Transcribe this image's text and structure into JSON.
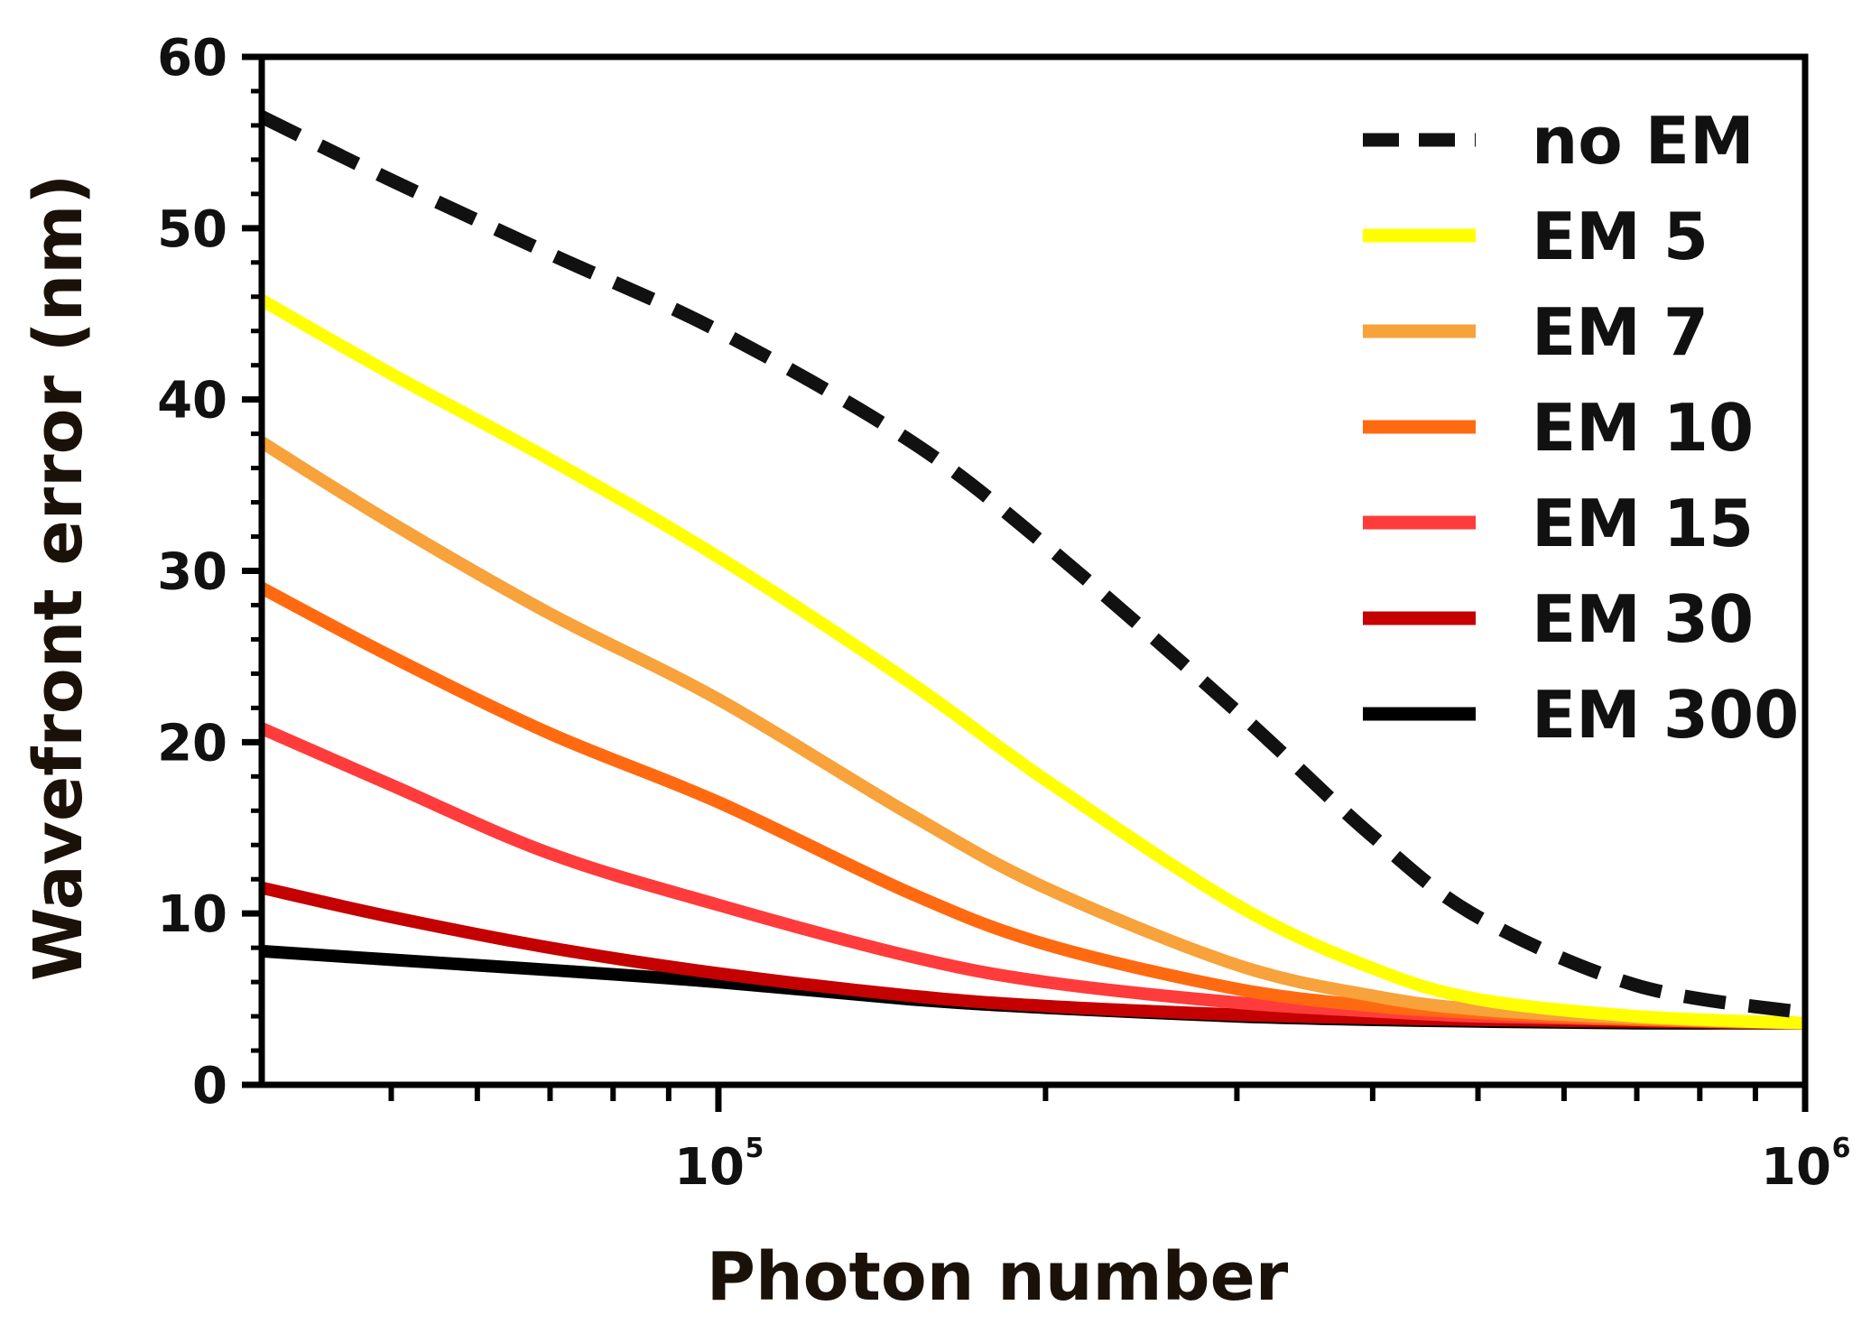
{
  "chart_data": {
    "type": "line",
    "title": "",
    "xlabel": "Photon number",
    "ylabel": "Wavefront error (nm)",
    "x_scale": "log",
    "xlim": [
      38000,
      1000000
    ],
    "ylim": [
      0,
      60
    ],
    "y_ticks": [
      0,
      10,
      20,
      30,
      40,
      50,
      60
    ],
    "x_major_ticks": [
      {
        "value": 100000,
        "base": "10",
        "exponent": "5"
      },
      {
        "value": 1000000,
        "base": "10",
        "exponent": "6"
      }
    ],
    "x_minor_ticks": [
      50000,
      60000,
      70000,
      80000,
      90000,
      200000,
      300000,
      400000,
      500000,
      600000,
      700000,
      800000,
      900000
    ],
    "x": [
      38000,
      50000,
      70000,
      100000,
      150000,
      200000,
      300000,
      400000,
      500000,
      700000,
      1000000
    ],
    "legend_position": "top-right",
    "grid": false,
    "series": [
      {
        "name": "no EM",
        "color": "#111111",
        "style": "dashed",
        "values": [
          56.5,
          52.8,
          48.5,
          44.0,
          37.6,
          31.5,
          21.8,
          14.5,
          9.8,
          5.8,
          4.2
        ]
      },
      {
        "name": "EM 5",
        "color": "#ffff00",
        "style": "solid",
        "values": [
          45.8,
          41.5,
          36.5,
          30.8,
          23.5,
          17.8,
          10.5,
          6.8,
          5.0,
          4.0,
          3.6
        ]
      },
      {
        "name": "EM 7",
        "color": "#f7a23a",
        "style": "solid",
        "values": [
          37.5,
          32.8,
          27.5,
          22.5,
          15.8,
          11.5,
          7.0,
          5.2,
          4.4,
          3.9,
          3.6
        ]
      },
      {
        "name": "EM 10",
        "color": "#ff6a10",
        "style": "solid",
        "values": [
          29.0,
          25.0,
          20.5,
          16.5,
          11.2,
          8.2,
          5.6,
          4.6,
          4.2,
          3.8,
          3.6
        ]
      },
      {
        "name": "EM 15",
        "color": "#ff3b3b",
        "style": "solid",
        "values": [
          20.8,
          17.5,
          13.5,
          10.5,
          7.5,
          6.0,
          4.8,
          4.3,
          4.0,
          3.8,
          3.6
        ]
      },
      {
        "name": "EM 30",
        "color": "#c40000",
        "style": "solid",
        "values": [
          11.5,
          9.8,
          8.0,
          6.5,
          5.2,
          4.6,
          4.1,
          3.9,
          3.8,
          3.7,
          3.6
        ]
      },
      {
        "name": "EM 300",
        "color": "#000000",
        "style": "solid",
        "values": [
          7.8,
          7.3,
          6.7,
          6.0,
          5.0,
          4.5,
          4.0,
          3.8,
          3.7,
          3.6,
          3.6
        ]
      }
    ]
  }
}
